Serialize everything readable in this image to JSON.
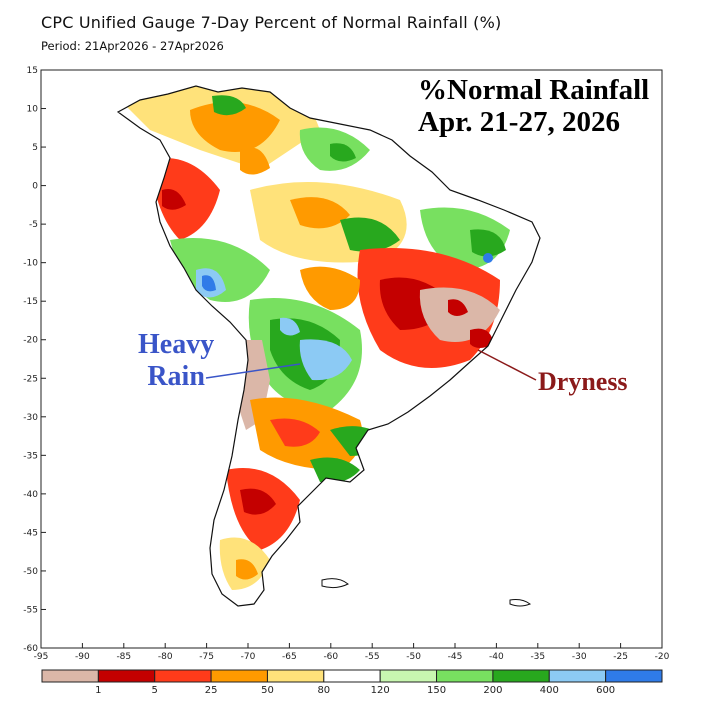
{
  "header": {
    "title": "CPC Unified Gauge 7-Day Percent of Normal Rainfall (%)",
    "period_label": "Period:",
    "period_value": "21Apr2026 - 27Apr2026"
  },
  "annotations": {
    "map_title_line1": "%Normal Rainfall",
    "map_title_line2": "Apr. 21-27, 2026",
    "heavy_rain_line1": "Heavy",
    "heavy_rain_line2": "Rain",
    "dryness": "Dryness"
  },
  "axes": {
    "lat_labels": [
      "15",
      "10",
      "5",
      "0",
      "-5",
      "-10",
      "-15",
      "-20",
      "-25",
      "-30",
      "-35",
      "-40",
      "-45",
      "-50",
      "-55",
      "-60"
    ],
    "lon_labels": [
      "-95",
      "-90",
      "-85",
      "-80",
      "-75",
      "-70",
      "-65",
      "-60",
      "-55",
      "-50",
      "-45",
      "-40",
      "-35",
      "-30",
      "-25",
      "-20"
    ],
    "lat_range": [
      -60,
      15
    ],
    "lon_range": [
      -95,
      -20
    ]
  },
  "legend": {
    "colors": [
      "#dbb7a8",
      "#c40000",
      "#ff3b1a",
      "#ff9a00",
      "#ffe27a",
      "#ffffff",
      "#c8f7b0",
      "#78e060",
      "#28a81e",
      "#8ccaf4",
      "#2f7be8"
    ],
    "thresholds": [
      "1",
      "5",
      "25",
      "50",
      "80",
      "120",
      "150",
      "200",
      "400",
      "600"
    ]
  },
  "colors": {
    "dry_extreme": "#dbb7a8",
    "dry_severe": "#c40000",
    "dry": "#ff3b1a",
    "wet": "#28a81e",
    "very_wet": "#2f7be8",
    "heavy_rain_text": "#3a55c8",
    "dryness_text": "#8b1a1a"
  }
}
